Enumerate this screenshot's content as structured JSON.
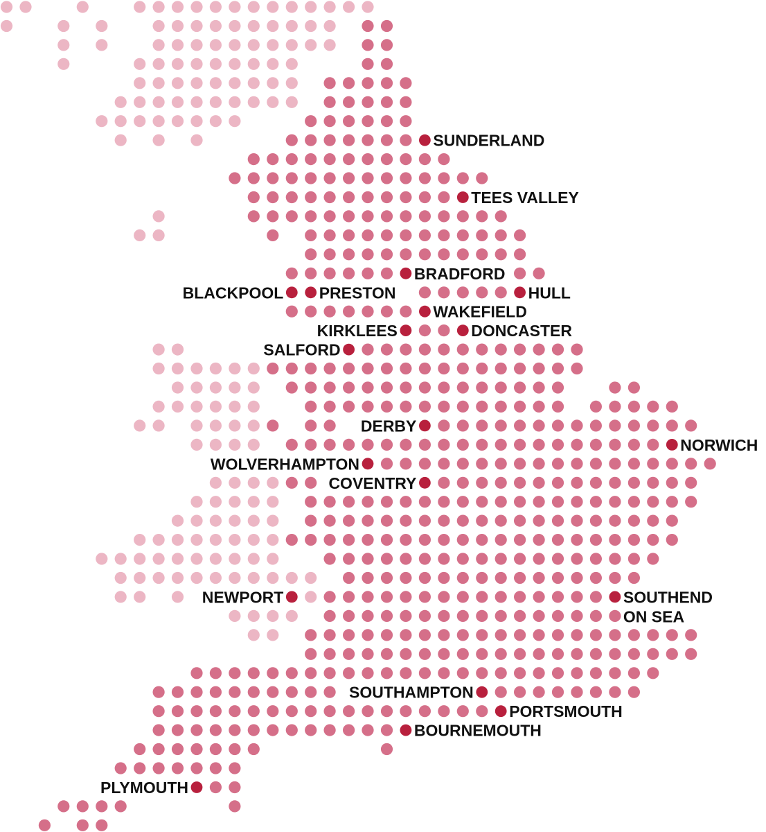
{
  "colors": {
    "l": "#ecb6c4",
    "m": "#d56f89",
    "c": "#b8203d",
    "label": "#111111",
    "background": "#ffffff"
  },
  "legend_of_codes": {
    "l": "light dot",
    "m": "medium dot",
    "c": "city dot"
  },
  "grid_rows": [
    "2l 2. 1l 2. 13l",
    "1l 2. 1l 1. 1l 2. 10l 1. 2m",
    "3. 1l 1. 1l 2. 10l 1. 2m",
    "3. 1l 3. 9l 3. 2m",
    "7. 9l 1. 5m",
    "6. 10l 1. 5m",
    "5. 8l 3. 6m",
    "6. 1l 1. 1l 1. 1l 4. 7m 1c",
    "13. 11m",
    "12. 14m",
    "13. 11m 1c",
    "8. 1l 4. 14m",
    "7. 2l 5. 1m 1. 12m",
    "16. 12m",
    "15. 6m 1c 5. 2m",
    "15. 2c 5. 5m 1c",
    "15. 7m 1c",
    "21. 1c 2m 1c",
    "8. 2l 8. 1c 12m",
    "8. 6l 17m",
    "9. 5l 1. 15m 2. 2m",
    "8. 6l 2. 14m 1. 5m",
    "7. 2l 1. 4l 1m 1. 2m 4. 1c 14m",
    "10. 4l 1. 20m 1c",
    "19. 1c 18m",
    "11. 4l 2m 5. 1c 14m",
    "10. 5l 1. 21m",
    "9. 6l 1. 20m",
    "7. 8l 21m",
    "5. 10l 2. 18m",
    "6. 11l 1. 16m",
    "6. 2l 1. 1l 5. 1c 1l 15m 1c",
    "12. 4l 1. 16m",
    "13. 2l 1. 21m",
    "16. 21m",
    "10. 25m",
    "8. 10m 7. 1c 8m",
    "8. 18m 1c",
    "8. 13m 1c",
    "7. 7m 6. 1m",
    "6. 7m",
    "10. 1c 2m",
    "3. 4m 5. 1m",
    "2. 1m 1. 2m"
  ],
  "cities": [
    {
      "lines": [
        "SUNDERLAND"
      ],
      "side": "right"
    },
    {
      "lines": [
        "TEES VALLEY"
      ],
      "side": "right"
    },
    {
      "lines": [
        "BRADFORD"
      ],
      "side": "right"
    },
    {
      "lines": [
        "BLACKPOOL"
      ],
      "side": "left"
    },
    {
      "lines": [
        "PRESTON"
      ],
      "side": "right"
    },
    {
      "lines": [
        "HULL"
      ],
      "side": "right"
    },
    {
      "lines": [
        "WAKEFIELD"
      ],
      "side": "right"
    },
    {
      "lines": [
        "KIRKLEES"
      ],
      "side": "left"
    },
    {
      "lines": [
        "DONCASTER"
      ],
      "side": "right"
    },
    {
      "lines": [
        "SALFORD"
      ],
      "side": "left"
    },
    {
      "lines": [
        "DERBY"
      ],
      "side": "left"
    },
    {
      "lines": [
        "NORWICH"
      ],
      "side": "right"
    },
    {
      "lines": [
        "WOLVERHAMPTON"
      ],
      "side": "left"
    },
    {
      "lines": [
        "COVENTRY"
      ],
      "side": "left"
    },
    {
      "lines": [
        "NEWPORT"
      ],
      "side": "left"
    },
    {
      "lines": [
        "SOUTHEND",
        "ON SEA"
      ],
      "side": "right"
    },
    {
      "lines": [
        "SOUTHAMPTON"
      ],
      "side": "left"
    },
    {
      "lines": [
        "PORTSMOUTH"
      ],
      "side": "right"
    },
    {
      "lines": [
        "BOURNEMOUTH"
      ],
      "side": "right"
    },
    {
      "lines": [
        "PLYMOUTH"
      ],
      "side": "left"
    }
  ]
}
